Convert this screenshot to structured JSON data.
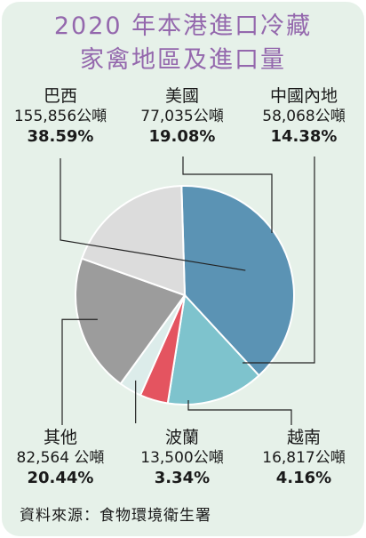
{
  "title_line1": "2020 年本港進口冷藏",
  "title_line2": "家禽地區及進口量",
  "source": "資料來源：食物環境衛生署",
  "chart_data": {
    "type": "pie",
    "unit": "公噸",
    "slices": [
      {
        "name": "巴西",
        "amount": "155,856公噸",
        "value": 155856,
        "percent": "38.59%",
        "color": "#5b93b4"
      },
      {
        "name": "中國內地",
        "amount": "58,068公噸",
        "value": 58068,
        "percent": "14.38%",
        "color": "#7ec3cd"
      },
      {
        "name": "越南",
        "amount": "16,817公噸",
        "value": 16817,
        "percent": "4.16%",
        "color": "#e45460"
      },
      {
        "name": "波蘭",
        "amount": "13,500公噸",
        "value": 13500,
        "percent": "3.34%",
        "color": "#dcecea"
      },
      {
        "name": "其他",
        "amount": "82,564 公噸",
        "value": 82564,
        "percent": "20.44%",
        "color": "#9c9c9c"
      },
      {
        "name": "美國",
        "amount": "77,035公噸",
        "value": 77035,
        "percent": "19.08%",
        "color": "#dcdcdc"
      }
    ]
  }
}
